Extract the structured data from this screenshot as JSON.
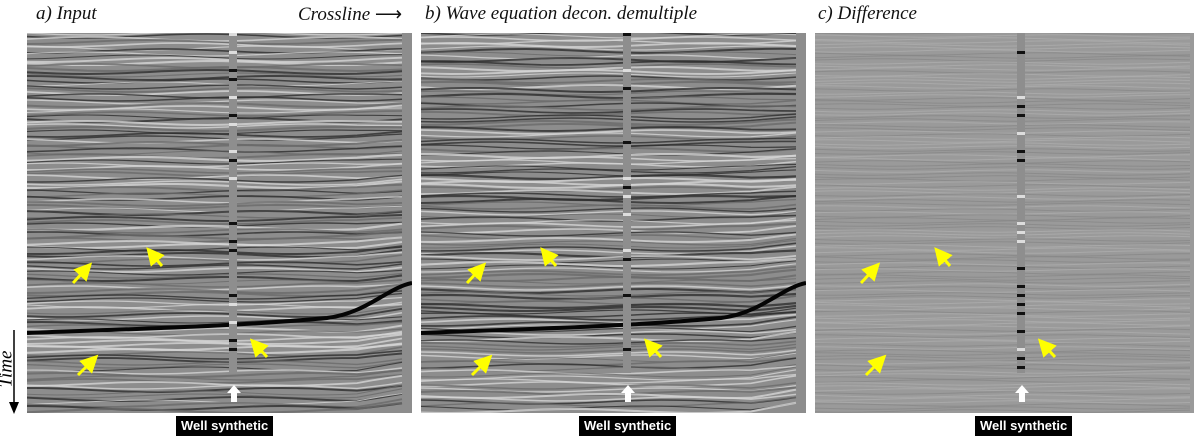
{
  "panels": [
    {
      "title": "a) Input",
      "badge": "Well synthetic"
    },
    {
      "title": "b) Wave equation decon. demultiple",
      "badge": "Well synthetic"
    },
    {
      "title": "c) Difference",
      "badge": "Well synthetic"
    }
  ],
  "axes": {
    "crossline": "Crossline",
    "time": "Time"
  },
  "colors": {
    "annotation_arrow": "#ffff00",
    "well_marker": "#ffffff",
    "badge_bg": "#000000"
  }
}
